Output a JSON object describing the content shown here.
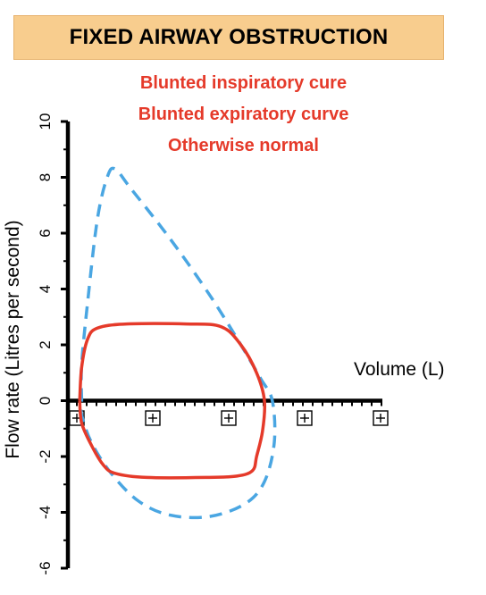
{
  "header": {
    "title": "FIXED AIRWAY OBSTRUCTION"
  },
  "annotations": [
    "Blunted inspiratory cure",
    "Blunted expiratory curve",
    "Otherwise normal"
  ],
  "colors": {
    "abnormal": "#e53a2a",
    "normal": "#4aa6e2",
    "title_bg": "#f8cd8e"
  },
  "chart_data": {
    "type": "line",
    "title": "FIXED AIRWAY OBSTRUCTION",
    "xlabel": "Volume (L)",
    "ylabel": "Flow rate (Litres per second)",
    "ylim": [
      -6,
      10
    ],
    "xlim": [
      0,
      8
    ],
    "yticks": [
      -6,
      -4,
      -2,
      0,
      2,
      4,
      6,
      8,
      10
    ],
    "x_tick_markers": 5,
    "grid": false,
    "legend": "none",
    "series": [
      {
        "style": "dashed",
        "color": "#4aa6e2",
        "points": [
          [
            0.35,
            0.0
          ],
          [
            0.35,
            1.3
          ],
          [
            0.5,
            3.5
          ],
          [
            0.75,
            6.5
          ],
          [
            1.0,
            8.0
          ],
          [
            1.2,
            8.3
          ],
          [
            1.6,
            7.6
          ],
          [
            2.6,
            5.8
          ],
          [
            3.6,
            3.8
          ],
          [
            4.4,
            2.0
          ],
          [
            4.9,
            0.8
          ],
          [
            5.2,
            0.0
          ],
          [
            5.25,
            -1.5
          ],
          [
            5.0,
            -2.9
          ],
          [
            4.5,
            -3.7
          ],
          [
            3.6,
            -4.15
          ],
          [
            2.6,
            -4.1
          ],
          [
            1.8,
            -3.6
          ],
          [
            1.1,
            -2.6
          ],
          [
            0.6,
            -1.5
          ],
          [
            0.35,
            -0.5
          ],
          [
            0.35,
            0.0
          ]
        ]
      },
      {
        "style": "solid",
        "color": "#e53a2a",
        "points": [
          [
            0.3,
            0.0
          ],
          [
            0.35,
            1.2
          ],
          [
            0.5,
            2.2
          ],
          [
            0.75,
            2.6
          ],
          [
            1.5,
            2.75
          ],
          [
            3.0,
            2.75
          ],
          [
            3.9,
            2.65
          ],
          [
            4.4,
            2.0
          ],
          [
            4.8,
            1.0
          ],
          [
            5.0,
            0.0
          ],
          [
            4.95,
            -1.1
          ],
          [
            4.8,
            -2.0
          ],
          [
            4.7,
            -2.5
          ],
          [
            4.3,
            -2.7
          ],
          [
            3.5,
            -2.75
          ],
          [
            2.0,
            -2.75
          ],
          [
            1.2,
            -2.6
          ],
          [
            0.9,
            -2.3
          ],
          [
            0.6,
            -1.6
          ],
          [
            0.35,
            -0.8
          ],
          [
            0.3,
            0.0
          ]
        ]
      }
    ]
  }
}
